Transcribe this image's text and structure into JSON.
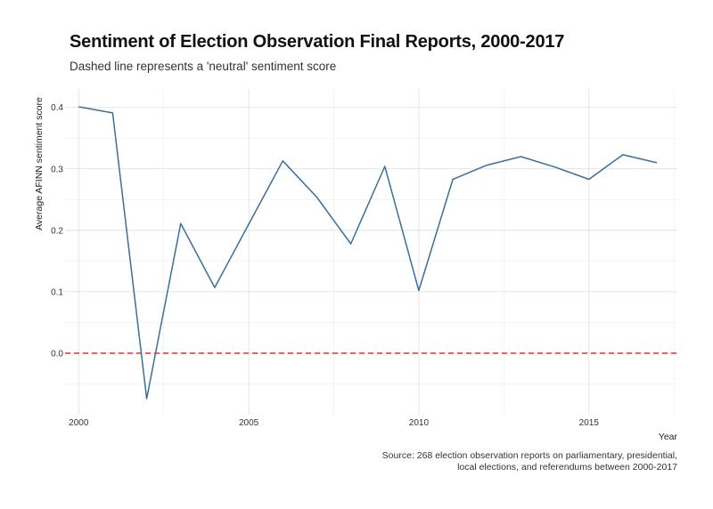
{
  "title": "Sentiment of Election Observation Final Reports, 2000-2017",
  "subtitle": "Dashed line represents a 'neutral' sentiment score",
  "caption_line1": "Source: 268 election observation reports on parliamentary, presidential,",
  "caption_line2": "local elections, and referendums between 2000-2017",
  "colors": {
    "line": "#3b6f9b",
    "reference": "#e01c1c",
    "grid_major": "#dddddd",
    "grid_minor": "#eeeeee"
  },
  "chart_data": {
    "type": "line",
    "xlabel": "Year",
    "ylabel": "Average AFINN sentiment score",
    "xlim": [
      1999.6,
      2017.6
    ],
    "ylim": [
      -0.1,
      0.43
    ],
    "xticks": [
      2000,
      2005,
      2010,
      2015
    ],
    "xtick_labels": [
      "2000",
      "2005",
      "2010",
      "2015"
    ],
    "yticks": [
      0.0,
      0.1,
      0.2,
      0.3,
      0.4
    ],
    "ytick_labels": [
      "0.0",
      "0.1",
      "0.2",
      "0.3",
      "0.4"
    ],
    "grid": true,
    "reference_line": {
      "y": 0.0,
      "style": "dashed"
    },
    "series": [
      {
        "x": [
          2000,
          2001,
          2002,
          2003,
          2004,
          2005,
          2006,
          2007,
          2008,
          2009,
          2010,
          2011,
          2012,
          2013,
          2014,
          2015,
          2016,
          2017
        ],
        "values": [
          0.401,
          0.391,
          -0.074,
          0.211,
          0.107,
          0.21,
          0.313,
          0.254,
          0.178,
          0.304,
          0.102,
          0.283,
          0.306,
          0.32,
          0.303,
          0.283,
          0.323,
          0.31
        ]
      }
    ]
  }
}
